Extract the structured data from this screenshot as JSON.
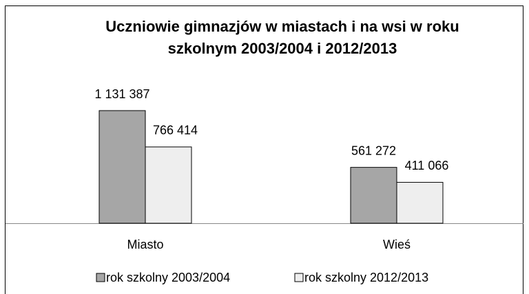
{
  "chart_data": {
    "type": "bar",
    "title": [
      "Uczniowie gimnazjów w  miastach i na wsi w roku",
      "szkolnym 2003/2004 i 2012/2013"
    ],
    "categories": [
      "Miasto",
      "Wieś"
    ],
    "series": [
      {
        "name": "rok szkolny 2003/2004",
        "color": "#a6a6a6",
        "values": [
          1131387,
          561272
        ],
        "value_labels": [
          "1 131 387",
          "561 272"
        ]
      },
      {
        "name": "rok szkolny 2012/2013",
        "color": "#eeeeee",
        "values": [
          766414,
          411066
        ],
        "value_labels": [
          "766 414",
          "411 066"
        ]
      }
    ],
    "legend": "bottom"
  }
}
